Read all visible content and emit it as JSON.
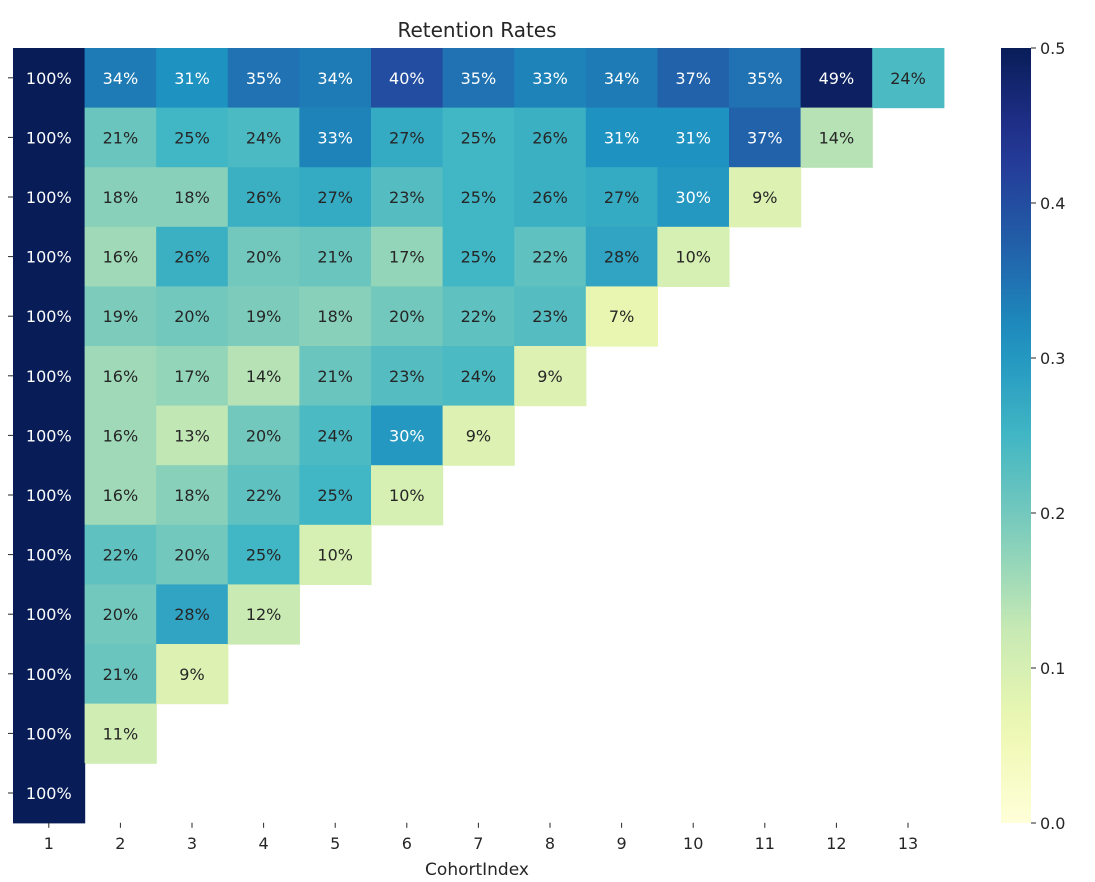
{
  "chart_data": {
    "type": "heatmap",
    "title": "Retention Rates",
    "xlabel": "CohortIndex",
    "ylabel": "",
    "x": [
      "1",
      "2",
      "3",
      "4",
      "5",
      "6",
      "7",
      "8",
      "9",
      "10",
      "11",
      "12",
      "13"
    ],
    "rows": [
      [
        1.0,
        0.34,
        0.31,
        0.35,
        0.34,
        0.4,
        0.35,
        0.33,
        0.34,
        0.37,
        0.35,
        0.49,
        0.24
      ],
      [
        1.0,
        0.21,
        0.25,
        0.24,
        0.33,
        0.27,
        0.25,
        0.26,
        0.31,
        0.31,
        0.37,
        0.14
      ],
      [
        1.0,
        0.18,
        0.18,
        0.26,
        0.27,
        0.23,
        0.25,
        0.26,
        0.27,
        0.3,
        0.09
      ],
      [
        1.0,
        0.16,
        0.26,
        0.2,
        0.21,
        0.17,
        0.25,
        0.22,
        0.28,
        0.1
      ],
      [
        1.0,
        0.19,
        0.2,
        0.19,
        0.18,
        0.2,
        0.22,
        0.23,
        0.07
      ],
      [
        1.0,
        0.16,
        0.17,
        0.14,
        0.21,
        0.23,
        0.24,
        0.09
      ],
      [
        1.0,
        0.16,
        0.13,
        0.2,
        0.24,
        0.3,
        0.09
      ],
      [
        1.0,
        0.16,
        0.18,
        0.22,
        0.25,
        0.1
      ],
      [
        1.0,
        0.22,
        0.2,
        0.25,
        0.1
      ],
      [
        1.0,
        0.2,
        0.28,
        0.12
      ],
      [
        1.0,
        0.21,
        0.09
      ],
      [
        1.0,
        0.11
      ],
      [
        1.0
      ]
    ],
    "color_range": [
      0.0,
      0.5
    ],
    "colormap": "YlGnBu",
    "colorbar_ticks": [
      "0.0",
      "0.1",
      "0.2",
      "0.3",
      "0.4",
      "0.5"
    ],
    "value_format": "percent",
    "grid": false
  }
}
